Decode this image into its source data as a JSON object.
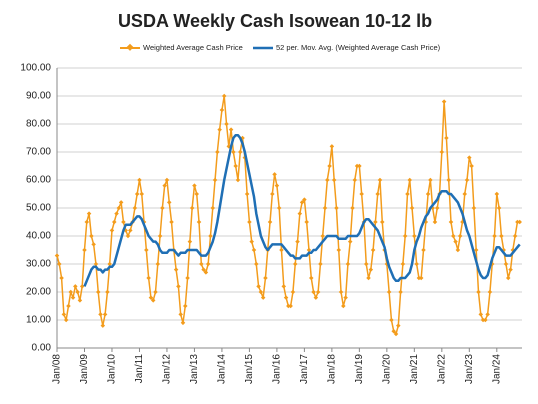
{
  "chart_data": {
    "type": "line",
    "title": "USDA Weekly Cash Isowean 10-12 lb",
    "categories": [
      "Jan/08",
      null,
      null,
      null,
      null,
      null,
      null,
      null,
      null,
      null,
      null,
      null,
      "Jan/09",
      null,
      null,
      null,
      null,
      null,
      null,
      null,
      null,
      null,
      null,
      null,
      "Jan/10",
      null,
      null,
      null,
      null,
      null,
      null,
      null,
      null,
      null,
      null,
      null,
      "Jan/11",
      null,
      null,
      null,
      null,
      null,
      null,
      null,
      null,
      null,
      null,
      null,
      "Jan/12",
      null,
      null,
      null,
      null,
      null,
      null,
      null,
      null,
      null,
      null,
      null,
      "Jan/13",
      null,
      null,
      null,
      null,
      null,
      null,
      null,
      null,
      null,
      null,
      null,
      "Jan/14",
      null,
      null,
      null,
      null,
      null,
      null,
      null,
      null,
      null,
      null,
      null,
      "Jan/15",
      null,
      null,
      null,
      null,
      null,
      null,
      null,
      null,
      null,
      null,
      null,
      "Jan/16",
      null,
      null,
      null,
      null,
      null,
      null,
      null,
      null,
      null,
      null,
      null,
      "Jan/17",
      null,
      null,
      null,
      null,
      null,
      null,
      null,
      null,
      null,
      null,
      null,
      "Jan/18",
      null,
      null,
      null,
      null,
      null,
      null,
      null,
      null,
      null,
      null,
      null,
      "Jan/19",
      null,
      null,
      null,
      null,
      null,
      null,
      null,
      null,
      null,
      null,
      null,
      "Jan/20",
      null,
      null,
      null,
      null,
      null,
      null,
      null,
      null,
      null,
      null,
      null,
      "Jan/21",
      null,
      null,
      null,
      null,
      null,
      null,
      null,
      null,
      null,
      null,
      null,
      "Jan/22",
      null,
      null,
      null,
      null,
      null,
      null,
      null,
      null,
      null,
      null,
      null,
      "Jan/23",
      null,
      null,
      null,
      null,
      null,
      null,
      null,
      null,
      null,
      null,
      null,
      "Jan/24",
      null,
      null,
      null,
      null,
      null,
      null,
      null,
      null,
      null,
      null
    ],
    "series": [
      {
        "name": "Weighted Average Cash Price",
        "color": "#f39c1c",
        "marker": "diamond",
        "values": [
          33,
          30,
          25,
          12,
          10,
          15,
          20,
          18,
          22,
          20,
          17,
          22,
          35,
          45,
          48,
          40,
          37,
          30,
          20,
          12,
          8,
          12,
          20,
          30,
          42,
          45,
          48,
          50,
          52,
          45,
          42,
          40,
          42,
          45,
          50,
          55,
          60,
          55,
          45,
          35,
          25,
          18,
          17,
          20,
          30,
          40,
          50,
          58,
          60,
          52,
          45,
          35,
          28,
          22,
          12,
          9,
          15,
          25,
          38,
          50,
          58,
          55,
          45,
          30,
          28,
          27,
          30,
          40,
          50,
          60,
          70,
          78,
          85,
          90,
          80,
          72,
          78,
          70,
          65,
          60,
          70,
          75,
          68,
          55,
          45,
          38,
          35,
          30,
          22,
          20,
          18,
          25,
          35,
          45,
          55,
          62,
          58,
          50,
          35,
          22,
          18,
          15,
          15,
          20,
          30,
          38,
          48,
          52,
          53,
          45,
          35,
          25,
          20,
          18,
          20,
          30,
          40,
          50,
          60,
          65,
          72,
          60,
          50,
          35,
          20,
          15,
          18,
          30,
          38,
          50,
          60,
          65,
          65,
          55,
          45,
          30,
          25,
          28,
          35,
          45,
          55,
          60,
          45,
          35,
          30,
          20,
          10,
          6,
          5,
          8,
          20,
          30,
          40,
          55,
          60,
          50,
          40,
          30,
          25,
          25,
          35,
          45,
          55,
          60,
          50,
          45,
          50,
          55,
          70,
          88,
          75,
          60,
          45,
          40,
          38,
          35,
          40,
          45,
          55,
          60,
          68,
          65,
          50,
          35,
          20,
          12,
          10,
          10,
          12,
          20,
          30,
          40,
          55,
          50,
          40,
          35,
          30,
          25,
          28,
          35,
          40,
          45,
          45
        ]
      },
      {
        "name": "52 per. Mov. Avg. (Weighted Average Cash Price)",
        "color": "#1f6fb5",
        "values": [
          null,
          null,
          null,
          null,
          null,
          null,
          null,
          null,
          null,
          null,
          null,
          null,
          22,
          24,
          26,
          28,
          29,
          29,
          28,
          28,
          27,
          28,
          28,
          29,
          29,
          30,
          33,
          36,
          39,
          42,
          44,
          44,
          44,
          45,
          46,
          47,
          47,
          46,
          44,
          42,
          40,
          39,
          38,
          38,
          37,
          35,
          34,
          34,
          34,
          35,
          35,
          35,
          34,
          33,
          34,
          34,
          34,
          35,
          35,
          35,
          35,
          35,
          34,
          33,
          33,
          33,
          34,
          36,
          38,
          41,
          45,
          50,
          55,
          60,
          64,
          68,
          72,
          75,
          76,
          76,
          75,
          73,
          70,
          66,
          62,
          58,
          54,
          48,
          44,
          40,
          38,
          36,
          35,
          36,
          37,
          37,
          37,
          37,
          37,
          36,
          35,
          34,
          33,
          33,
          32,
          32,
          32,
          33,
          33,
          33,
          34,
          34,
          35,
          35,
          36,
          37,
          38,
          39,
          40,
          40,
          40,
          40,
          40,
          39,
          39,
          39,
          39,
          40,
          40,
          40,
          40,
          40,
          41,
          43,
          45,
          46,
          46,
          45,
          44,
          43,
          42,
          40,
          38,
          36,
          32,
          29,
          27,
          25,
          24,
          24,
          25,
          25,
          25,
          26,
          27,
          30,
          35,
          38,
          40,
          43,
          45,
          47,
          48,
          50,
          51,
          52,
          53,
          55,
          56,
          56,
          56,
          55,
          55,
          54,
          53,
          52,
          50,
          48,
          45,
          42,
          40,
          37,
          34,
          31,
          28,
          26,
          25,
          25,
          26,
          29,
          32,
          34,
          36,
          36,
          35,
          34,
          33,
          33,
          33,
          34,
          35,
          36,
          37
        ]
      }
    ],
    "ylim": [
      0,
      100
    ],
    "yticks": [
      {
        "value": 0,
        "label": "0.00"
      },
      {
        "value": 10,
        "label": "10.00"
      },
      {
        "value": 20,
        "label": "20.00"
      },
      {
        "value": 30,
        "label": "30.00"
      },
      {
        "value": 40,
        "label": "40.00"
      },
      {
        "value": 50,
        "label": "50.00"
      },
      {
        "value": 60,
        "label": "60.00"
      },
      {
        "value": 70,
        "label": "70.00"
      },
      {
        "value": 80,
        "label": "80.00"
      },
      {
        "value": 90,
        "label": "90.00"
      },
      {
        "value": 100,
        "label": "100.00"
      }
    ],
    "grid": true,
    "legend": "top"
  }
}
